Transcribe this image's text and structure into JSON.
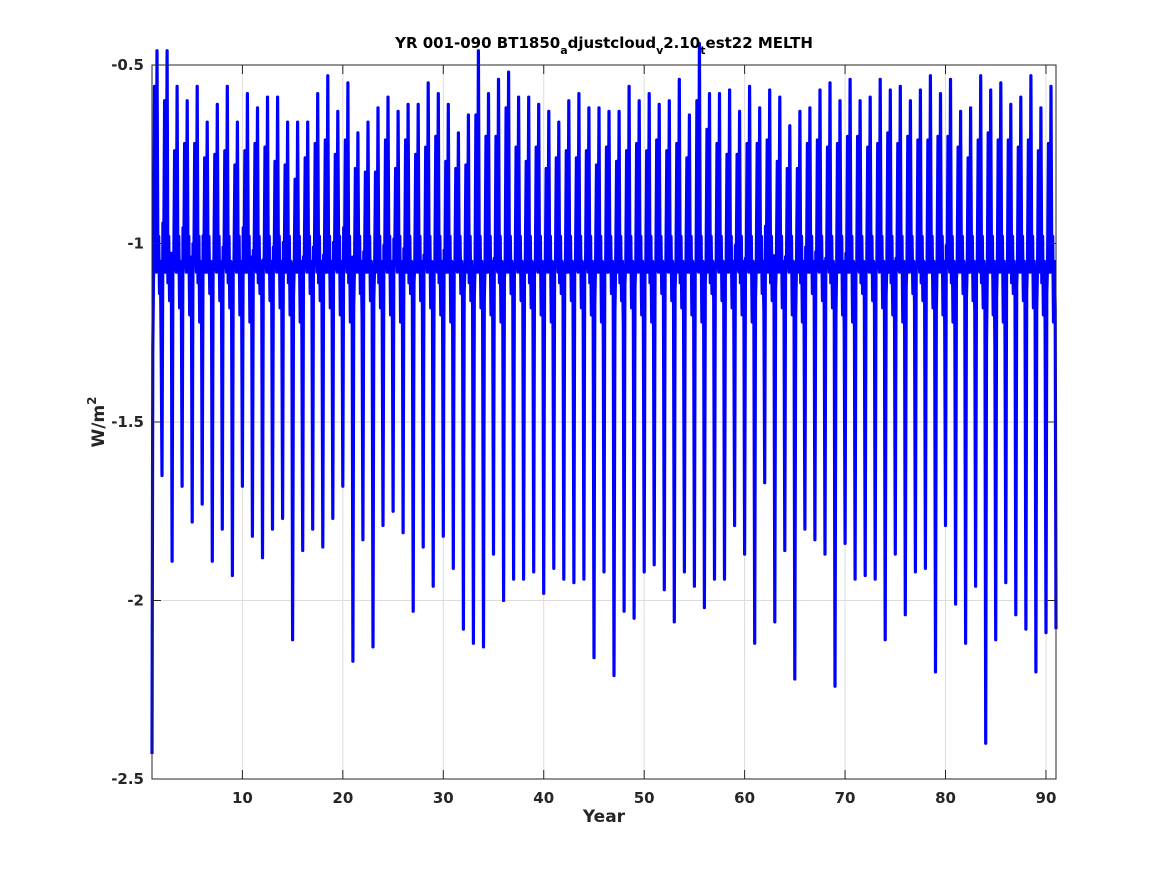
{
  "chart_data": {
    "type": "line",
    "title": {
      "parts": [
        {
          "text": "YR 001-090 BT1850",
          "sub": false
        },
        {
          "text": "a",
          "sub": true
        },
        {
          "text": "djustcloud",
          "sub": false
        },
        {
          "text": "v",
          "sub": true
        },
        {
          "text": "2.10",
          "sub": false
        },
        {
          "text": "t",
          "sub": true
        },
        {
          "text": "est22 MELTH",
          "sub": false
        }
      ]
    },
    "xlabel": "Year",
    "ylabel": {
      "base": "W/m",
      "sup": "2"
    },
    "xlim": [
      1,
      91
    ],
    "ylim": [
      -2.5,
      -0.5
    ],
    "xticks": [
      10,
      20,
      30,
      40,
      50,
      60,
      70,
      80,
      90
    ],
    "yticks": [
      -0.5,
      -1,
      -1.5,
      -2,
      -2.5
    ],
    "ytick_labels": [
      "-0.5",
      "-1",
      "-1.5",
      "-2",
      "-2.5"
    ],
    "xtick_labels": [
      "10",
      "20",
      "30",
      "40",
      "50",
      "60",
      "70",
      "80",
      "90"
    ],
    "grid": true,
    "series": [
      {
        "color": "#0000ff",
        "sampling": "monthly",
        "annual_min": [
          -2.43,
          -1.65,
          -1.89,
          -1.68,
          -1.78,
          -1.73,
          -1.89,
          -1.8,
          -1.93,
          -1.68,
          -1.82,
          -1.88,
          -1.8,
          -1.77,
          -2.11,
          -1.86,
          -1.8,
          -1.85,
          -1.77,
          -1.68,
          -2.17,
          -1.83,
          -2.13,
          -1.79,
          -1.75,
          -1.81,
          -2.03,
          -1.85,
          -1.96,
          -1.82,
          -1.91,
          -2.08,
          -2.12,
          -2.13,
          -1.87,
          -2.0,
          -1.94,
          -1.94,
          -1.92,
          -1.98,
          -1.91,
          -1.94,
          -1.95,
          -1.94,
          -2.16,
          -1.92,
          -2.21,
          -2.03,
          -2.05,
          -1.92,
          -1.9,
          -1.97,
          -2.06,
          -1.92,
          -1.96,
          -2.02,
          -1.94,
          -1.94,
          -1.79,
          -1.87,
          -2.12,
          -1.67,
          -2.06,
          -1.86,
          -2.22,
          -1.8,
          -1.83,
          -1.87,
          -2.24,
          -1.84,
          -1.94,
          -1.93,
          -1.94,
          -2.11,
          -1.87,
          -2.04,
          -1.92,
          -1.91,
          -2.2,
          -1.79,
          -2.01,
          -2.12,
          -1.96,
          -2.4,
          -2.11,
          -1.95,
          -2.04,
          -2.08,
          -2.2,
          -2.09
        ],
        "annual_max": [
          -0.56,
          -0.6,
          -0.74,
          -0.72,
          -0.72,
          -0.76,
          -0.75,
          -0.74,
          -0.78,
          -0.74,
          -0.72,
          -0.73,
          -0.77,
          -0.78,
          -0.82,
          -0.76,
          -0.72,
          -0.71,
          -0.75,
          -0.71,
          -0.79,
          -0.8,
          -0.8,
          -0.71,
          -0.79,
          -0.71,
          -0.75,
          -0.73,
          -0.7,
          -0.77,
          -0.79,
          -0.78,
          -0.64,
          -0.7,
          -0.7,
          -0.62,
          -0.73,
          -0.77,
          -0.73,
          -0.79,
          -0.76,
          -0.74,
          -0.76,
          -0.74,
          -0.78,
          -0.73,
          -0.77,
          -0.74,
          -0.72,
          -0.74,
          -0.71,
          -0.74,
          -0.72,
          -0.76,
          -0.6,
          -0.68,
          -0.72,
          -0.75,
          -0.75,
          -0.72,
          -0.72,
          -0.71,
          -0.77,
          -0.79,
          -0.79,
          -0.72,
          -0.71,
          -0.73,
          -0.72,
          -0.7,
          -0.7,
          -0.73,
          -0.72,
          -0.69,
          -0.72,
          -0.7,
          -0.71,
          -0.71,
          -0.7,
          -0.7,
          -0.73,
          -0.76,
          -0.71,
          -0.69,
          -0.71,
          -0.71,
          -0.73,
          -0.71,
          -0.74,
          -0.72
        ]
      }
    ]
  }
}
